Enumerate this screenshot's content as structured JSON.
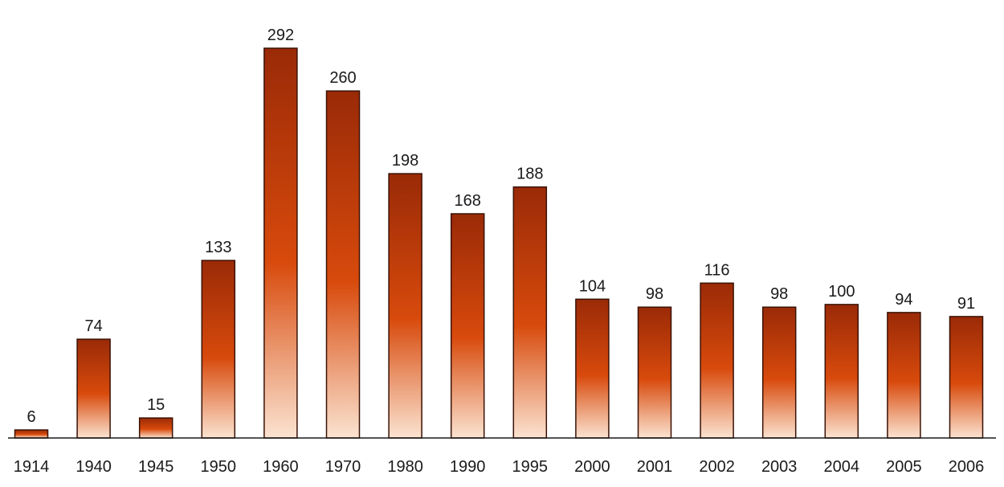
{
  "chart_data": {
    "type": "bar",
    "categories": [
      "1914",
      "1940",
      "1945",
      "1950",
      "1960",
      "1970",
      "1980",
      "1990",
      "1995",
      "2000",
      "2001",
      "2002",
      "2003",
      "2004",
      "2005",
      "2006"
    ],
    "values": [
      6,
      74,
      15,
      133,
      292,
      260,
      198,
      168,
      188,
      104,
      98,
      116,
      98,
      100,
      94,
      91
    ],
    "title": "",
    "xlabel": "",
    "ylabel": "",
    "ylim": [
      0,
      292
    ],
    "grid": false,
    "legend": "none",
    "show_value_labels": true,
    "colors": {
      "bar_top": "#9a2a07",
      "bar_mid": "#d84a0c",
      "bar_bottom": "#fbe3d1",
      "bar_outline": "#3a1206",
      "axis": "#1a1a1a",
      "text": "#1a1a1a"
    }
  }
}
